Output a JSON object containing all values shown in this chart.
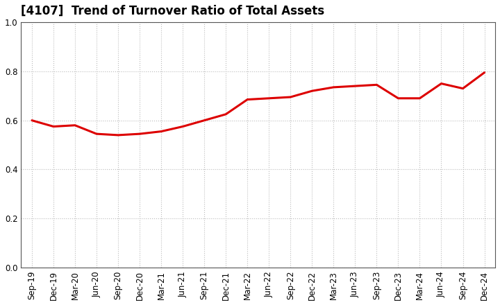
{
  "title": "[4107]  Trend of Turnover Ratio of Total Assets",
  "x_labels": [
    "Sep-19",
    "Dec-19",
    "Mar-20",
    "Jun-20",
    "Sep-20",
    "Dec-20",
    "Mar-21",
    "Jun-21",
    "Sep-21",
    "Dec-21",
    "Mar-22",
    "Jun-22",
    "Sep-22",
    "Dec-22",
    "Mar-23",
    "Jun-23",
    "Sep-23",
    "Dec-23",
    "Mar-24",
    "Jun-24",
    "Sep-24",
    "Dec-24"
  ],
  "y_values": [
    0.6,
    0.575,
    0.58,
    0.545,
    0.54,
    0.545,
    0.555,
    0.575,
    0.6,
    0.625,
    0.685,
    0.69,
    0.695,
    0.72,
    0.735,
    0.74,
    0.745,
    0.69,
    0.69,
    0.75,
    0.73,
    0.795
  ],
  "ylim": [
    0.0,
    1.0
  ],
  "yticks": [
    0.0,
    0.2,
    0.4,
    0.6,
    0.8,
    1.0
  ],
  "line_color": "#dd0000",
  "line_width": 2.2,
  "bg_color": "#ffffff",
  "grid_color": "#bbbbbb",
  "title_fontsize": 12,
  "tick_fontsize": 8.5,
  "title_bold": true
}
